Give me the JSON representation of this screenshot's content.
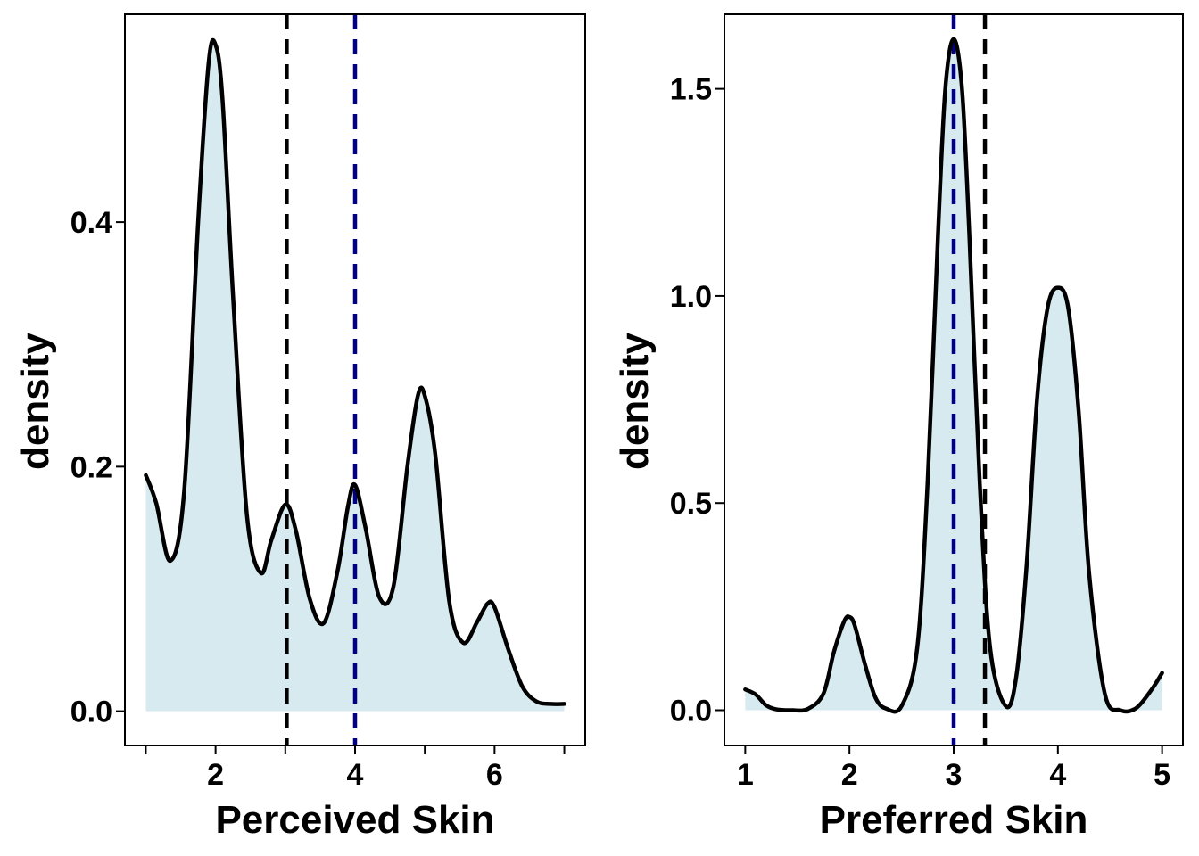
{
  "colors": {
    "fill": "#d6eaf0",
    "curve": "#000000",
    "mean_line": "#000000",
    "median_line": "#000080"
  },
  "chart_data": [
    {
      "type": "area",
      "xlabel": "Perceived Skin",
      "ylabel": "density",
      "xlim": [
        0.7,
        7.3
      ],
      "ylim": [
        -0.028,
        0.57
      ],
      "xticks": [
        1,
        2,
        3,
        4,
        5,
        6,
        7
      ],
      "xtick_labels": [
        "",
        "2",
        "",
        "4",
        "",
        "6",
        ""
      ],
      "yticks": [
        0.0,
        0.2,
        0.4
      ],
      "ytick_labels": [
        "0.0",
        "0.2",
        "0.4"
      ],
      "vlines": [
        {
          "x": 3.02,
          "style": "mean_line"
        },
        {
          "x": 4.0,
          "style": "median_line"
        }
      ],
      "density": {
        "x": [
          1.0,
          1.15,
          1.35,
          1.55,
          1.75,
          1.9,
          2.0,
          2.1,
          2.25,
          2.45,
          2.65,
          2.8,
          3.0,
          3.15,
          3.35,
          3.55,
          3.75,
          3.9,
          4.0,
          4.15,
          4.35,
          4.55,
          4.75,
          4.9,
          5.0,
          5.15,
          5.35,
          5.55,
          5.75,
          5.9,
          6.0,
          6.2,
          6.4,
          6.6,
          6.8,
          7.0
        ],
        "y": [
          0.193,
          0.17,
          0.123,
          0.18,
          0.4,
          0.53,
          0.545,
          0.5,
          0.34,
          0.16,
          0.113,
          0.14,
          0.169,
          0.148,
          0.092,
          0.072,
          0.115,
          0.168,
          0.185,
          0.15,
          0.093,
          0.102,
          0.2,
          0.258,
          0.258,
          0.21,
          0.09,
          0.056,
          0.073,
          0.088,
          0.085,
          0.05,
          0.02,
          0.008,
          0.006,
          0.006
        ]
      }
    },
    {
      "type": "area",
      "xlabel": "Preferred Skin",
      "ylabel": "density",
      "xlim": [
        0.8,
        5.2
      ],
      "ylim": [
        -0.085,
        1.68
      ],
      "xticks": [
        1,
        2,
        3,
        4,
        5
      ],
      "xtick_labels": [
        "1",
        "2",
        "3",
        "4",
        "5"
      ],
      "yticks": [
        0.0,
        0.5,
        1.0,
        1.5
      ],
      "ytick_labels": [
        "0.0",
        "0.5",
        "1.0",
        "1.5"
      ],
      "vlines": [
        {
          "x": 3.3,
          "style": "mean_line"
        },
        {
          "x": 3.0,
          "style": "median_line"
        }
      ],
      "density": {
        "x": [
          1.0,
          1.1,
          1.2,
          1.3,
          1.45,
          1.6,
          1.75,
          1.85,
          1.95,
          2.0,
          2.05,
          2.15,
          2.25,
          2.35,
          2.5,
          2.65,
          2.75,
          2.85,
          2.92,
          3.0,
          3.08,
          3.15,
          3.25,
          3.35,
          3.5,
          3.6,
          3.7,
          3.8,
          3.9,
          4.0,
          4.1,
          4.2,
          4.3,
          4.45,
          4.6,
          4.75,
          4.9,
          5.0
        ],
        "y": [
          0.05,
          0.038,
          0.012,
          0.002,
          0.0,
          0.003,
          0.04,
          0.14,
          0.215,
          0.225,
          0.205,
          0.11,
          0.03,
          0.004,
          0.01,
          0.15,
          0.55,
          1.15,
          1.5,
          1.62,
          1.5,
          1.15,
          0.55,
          0.15,
          0.01,
          0.08,
          0.35,
          0.75,
          0.97,
          1.02,
          0.97,
          0.72,
          0.33,
          0.04,
          0.0,
          0.005,
          0.05,
          0.09
        ]
      }
    }
  ]
}
